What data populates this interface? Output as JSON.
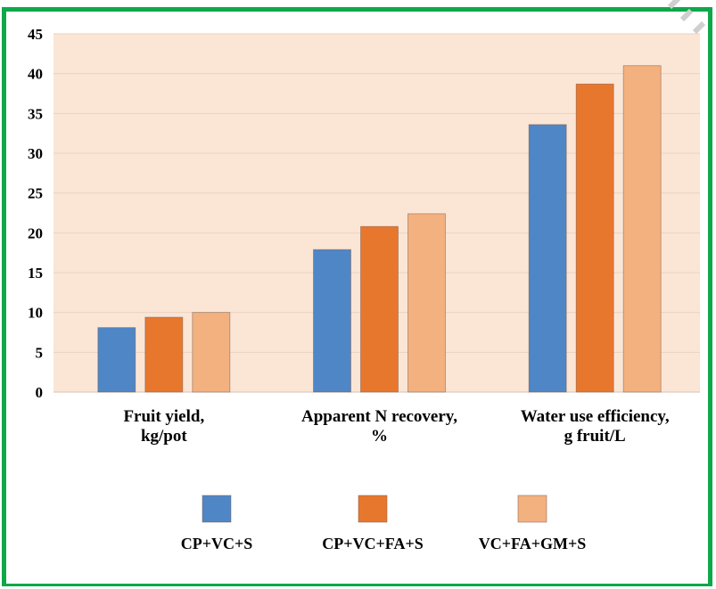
{
  "chart_data": {
    "type": "bar",
    "categories": [
      [
        "Fruit yield,",
        "kg/pot"
      ],
      [
        "Apparent N recovery,",
        "%"
      ],
      [
        "Water use efficiency,",
        "g fruit/L"
      ]
    ],
    "series": [
      {
        "name": "CP+VC+S",
        "values": [
          8.1,
          17.9,
          33.6
        ],
        "color": "#4f86c6"
      },
      {
        "name": "CP+VC+FA+S",
        "values": [
          9.4,
          20.8,
          38.7
        ],
        "color": "#e8772e"
      },
      {
        "name": "VC+FA+GM+S",
        "values": [
          10.0,
          22.4,
          41.0
        ],
        "color": "#f3b17f"
      }
    ],
    "ylim": [
      0,
      45
    ],
    "yticks": [
      0,
      5,
      10,
      15,
      20,
      25,
      30,
      35,
      40,
      45
    ],
    "grid": true,
    "plot_background": "#fbe6d6",
    "frame_color": "#0ea84a",
    "legend_position": "bottom"
  }
}
